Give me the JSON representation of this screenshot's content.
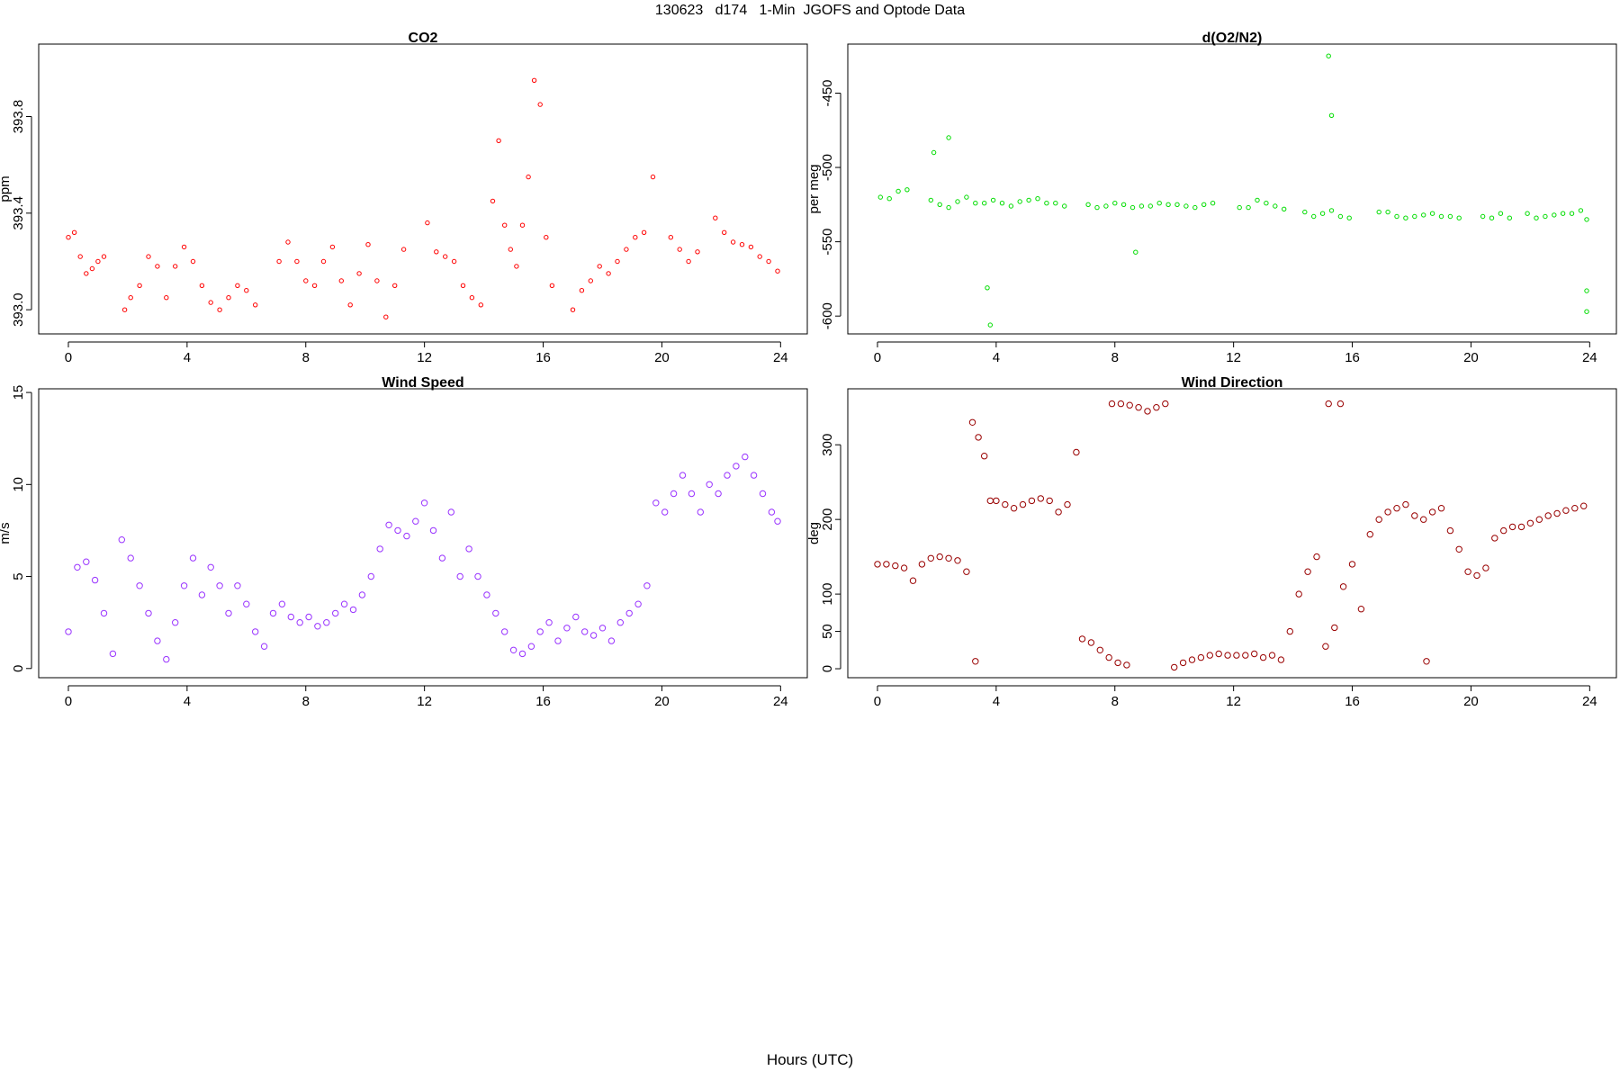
{
  "page": {
    "title": "130623   d174   1-Min  JGOFS and Optode Data",
    "xlabel": "Hours (UTC)"
  },
  "chart_data": [
    {
      "type": "scatter",
      "title": "CO2",
      "xlabel": "",
      "ylabel": "ppm",
      "xlim": [
        -1,
        24.9
      ],
      "ylim": [
        392.9,
        394.1
      ],
      "xticks": [
        0,
        4,
        8,
        12,
        16,
        20,
        24
      ],
      "yticks": [
        393.0,
        393.4,
        393.8
      ],
      "ytick_labels": [
        "393.0",
        "393.4",
        "393.8"
      ],
      "color": "#ff0000",
      "grid": false,
      "series": [
        {
          "x": [
            0.0,
            0.2,
            0.4,
            0.6,
            0.8,
            1.0,
            1.2,
            1.9,
            2.1,
            2.4,
            2.7,
            3.0,
            3.3,
            3.6,
            3.9,
            4.2,
            4.5,
            4.8,
            5.1,
            5.4,
            5.7,
            6.0,
            6.3,
            7.1,
            7.4,
            7.7,
            8.0,
            8.3,
            8.6,
            8.9,
            9.2,
            9.5,
            9.8,
            10.1,
            10.4,
            10.7,
            11.0,
            11.3,
            12.1,
            12.4,
            12.7,
            13.0,
            13.3,
            13.6,
            13.9,
            14.3,
            14.5,
            14.7,
            14.9,
            15.1,
            15.3,
            15.5,
            15.7,
            15.9,
            16.1,
            16.3,
            17.0,
            17.3,
            17.6,
            17.9,
            18.2,
            18.5,
            18.8,
            19.1,
            19.4,
            19.7,
            20.3,
            20.6,
            20.9,
            21.2,
            21.8,
            22.1,
            22.4,
            22.7,
            23.0,
            23.3,
            23.6,
            23.9
          ],
          "y": [
            393.3,
            393.32,
            393.22,
            393.15,
            393.17,
            393.2,
            393.22,
            393.0,
            393.05,
            393.1,
            393.22,
            393.18,
            393.05,
            393.18,
            393.26,
            393.2,
            393.1,
            393.03,
            393.0,
            393.05,
            393.1,
            393.08,
            393.02,
            393.2,
            393.28,
            393.2,
            393.12,
            393.1,
            393.2,
            393.26,
            393.12,
            393.02,
            393.15,
            393.27,
            393.12,
            392.97,
            393.1,
            393.25,
            393.36,
            393.24,
            393.22,
            393.2,
            393.1,
            393.05,
            393.02,
            393.45,
            393.7,
            393.35,
            393.25,
            393.18,
            393.35,
            393.55,
            393.95,
            393.85,
            393.3,
            393.1,
            393.0,
            393.08,
            393.12,
            393.18,
            393.15,
            393.2,
            393.25,
            393.3,
            393.32,
            393.55,
            393.3,
            393.25,
            393.2,
            393.24,
            393.38,
            393.32,
            393.28,
            393.27,
            393.26,
            393.22,
            393.2,
            393.16
          ]
        }
      ]
    },
    {
      "type": "scatter",
      "title": "d(O2/N2)",
      "xlabel": "",
      "ylabel": "per meg",
      "xlim": [
        -1,
        24.9
      ],
      "ylim": [
        -612,
        -417
      ],
      "xticks": [
        0,
        4,
        8,
        12,
        16,
        20,
        24
      ],
      "yticks": [
        -450,
        -500,
        -550,
        -600
      ],
      "ytick_labels": [
        "-450",
        "-500",
        "-550",
        "-600"
      ],
      "color": "#00dd00",
      "grid": false,
      "series": [
        {
          "x": [
            0.1,
            0.4,
            0.7,
            1.0,
            1.8,
            2.1,
            2.4,
            2.7,
            3.0,
            3.3,
            3.6,
            3.9,
            4.2,
            4.5,
            4.8,
            5.1,
            5.4,
            5.7,
            6.0,
            6.3,
            7.1,
            7.4,
            7.7,
            8.0,
            8.3,
            8.6,
            8.9,
            9.2,
            9.5,
            9.8,
            10.1,
            10.4,
            10.7,
            11.0,
            11.3,
            12.2,
            12.5,
            12.8,
            13.1,
            13.4,
            13.7,
            14.4,
            14.7,
            15.0,
            15.3,
            15.6,
            15.9,
            16.9,
            17.2,
            17.5,
            17.8,
            18.1,
            18.4,
            18.7,
            19.0,
            19.3,
            19.6,
            20.4,
            20.7,
            21.0,
            21.3,
            21.9,
            22.2,
            22.5,
            22.8,
            23.1,
            23.4,
            23.7,
            23.9,
            2.4,
            1.9,
            3.7,
            3.8,
            15.2,
            15.3,
            23.9,
            23.9,
            8.7
          ],
          "y": [
            -520,
            -521,
            -516,
            -515,
            -522,
            -525,
            -527,
            -523,
            -520,
            -524,
            -524,
            -522,
            -524,
            -526,
            -523,
            -522,
            -521,
            -524,
            -524,
            -526,
            -525,
            -527,
            -526,
            -524,
            -525,
            -527,
            -526,
            -526,
            -524,
            -525,
            -525,
            -526,
            -527,
            -525,
            -524,
            -527,
            -527,
            -522,
            -524,
            -526,
            -528,
            -530,
            -533,
            -531,
            -529,
            -533,
            -534,
            -530,
            -530,
            -533,
            -534,
            -533,
            -532,
            -531,
            -533,
            -533,
            -534,
            -533,
            -534,
            -531,
            -534,
            -531,
            -534,
            -533,
            -532,
            -531,
            -531,
            -529,
            -535,
            -480,
            -490,
            -581,
            -606,
            -425,
            -465,
            -583,
            -597,
            -557
          ]
        }
      ]
    },
    {
      "type": "scatter",
      "title": "Wind Speed",
      "xlabel": "",
      "ylabel": "m/s",
      "xlim": [
        -1,
        24.9
      ],
      "ylim": [
        -0.5,
        15.2
      ],
      "xticks": [
        0,
        4,
        8,
        12,
        16,
        20,
        24
      ],
      "yticks": [
        0,
        5,
        10,
        15
      ],
      "ytick_labels": [
        "0",
        "5",
        "10",
        "15"
      ],
      "color": "#9933ff",
      "grid": false,
      "series": [
        {
          "x": [
            0.0,
            0.3,
            0.6,
            0.9,
            1.2,
            1.5,
            1.8,
            2.1,
            2.4,
            2.7,
            3.0,
            3.3,
            3.6,
            3.9,
            4.2,
            4.5,
            4.8,
            5.1,
            5.4,
            5.7,
            6.0,
            6.3,
            6.6,
            6.9,
            7.2,
            7.5,
            7.8,
            8.1,
            8.4,
            8.7,
            9.0,
            9.3,
            9.6,
            9.9,
            10.2,
            10.5,
            10.8,
            11.1,
            11.4,
            11.7,
            12.0,
            12.3,
            12.6,
            12.9,
            13.2,
            13.5,
            13.8,
            14.1,
            14.4,
            14.7,
            15.0,
            15.3,
            15.6,
            15.9,
            16.2,
            16.5,
            16.8,
            17.1,
            17.4,
            17.7,
            18.0,
            18.3,
            18.6,
            18.9,
            19.2,
            19.5,
            19.8,
            20.1,
            20.4,
            20.7,
            21.0,
            21.3,
            21.6,
            21.9,
            22.2,
            22.5,
            22.8,
            23.1,
            23.4,
            23.7,
            23.9
          ],
          "y": [
            2.0,
            5.5,
            5.8,
            4.8,
            3.0,
            0.8,
            7.0,
            6.0,
            4.5,
            3.0,
            1.5,
            0.5,
            2.5,
            4.5,
            6.0,
            4.0,
            5.5,
            4.5,
            3.0,
            4.5,
            3.5,
            2.0,
            1.2,
            3.0,
            3.5,
            2.8,
            2.5,
            2.8,
            2.3,
            2.5,
            3.0,
            3.5,
            3.2,
            4.0,
            5.0,
            6.5,
            7.8,
            7.5,
            7.2,
            8.0,
            9.0,
            7.5,
            6.0,
            8.5,
            5.0,
            6.5,
            5.0,
            4.0,
            3.0,
            2.0,
            1.0,
            0.8,
            1.2,
            2.0,
            2.5,
            1.5,
            2.2,
            2.8,
            2.0,
            1.8,
            2.2,
            1.5,
            2.5,
            3.0,
            3.5,
            4.5,
            9.0,
            8.5,
            9.5,
            10.5,
            9.5,
            8.5,
            10.0,
            9.5,
            10.5,
            11.0,
            11.5,
            10.5,
            9.5,
            8.5,
            8.0
          ]
        }
      ]
    },
    {
      "type": "scatter",
      "title": "Wind Direction",
      "xlabel": "",
      "ylabel": "deg",
      "xlim": [
        -1,
        24.9
      ],
      "ylim": [
        -12,
        375
      ],
      "xticks": [
        0,
        4,
        8,
        12,
        16,
        20,
        24
      ],
      "yticks": [
        0,
        50,
        100,
        200,
        300
      ],
      "ytick_labels": [
        "0",
        "50",
        "100",
        "200",
        "300"
      ],
      "color": "#990000",
      "grid": false,
      "series": [
        {
          "x": [
            0.0,
            0.3,
            0.6,
            0.9,
            1.2,
            1.5,
            1.8,
            2.1,
            2.4,
            2.7,
            3.0,
            3.2,
            3.4,
            3.6,
            3.8,
            4.0,
            4.3,
            4.6,
            4.9,
            5.2,
            5.5,
            5.8,
            6.1,
            6.4,
            6.9,
            7.2,
            7.5,
            7.8,
            8.1,
            8.4,
            7.9,
            8.2,
            8.5,
            8.8,
            9.1,
            9.4,
            9.7,
            10.0,
            10.3,
            10.6,
            10.9,
            11.2,
            11.5,
            11.8,
            12.1,
            12.4,
            12.7,
            13.0,
            13.3,
            13.6,
            13.9,
            14.2,
            14.5,
            14.8,
            15.1,
            15.4,
            15.7,
            16.0,
            16.3,
            16.6,
            16.9,
            17.2,
            17.5,
            17.8,
            18.1,
            18.4,
            18.7,
            19.0,
            19.3,
            19.6,
            19.9,
            20.2,
            20.5,
            20.8,
            21.1,
            21.4,
            21.7,
            22.0,
            22.3,
            22.6,
            22.9,
            23.2,
            23.5,
            23.8,
            3.3,
            6.7,
            15.2,
            15.6,
            18.5
          ],
          "y": [
            140,
            140,
            138,
            135,
            118,
            140,
            148,
            150,
            148,
            145,
            130,
            330,
            310,
            285,
            225,
            225,
            220,
            215,
            220,
            225,
            228,
            225,
            210,
            220,
            40,
            35,
            25,
            15,
            8,
            5,
            355,
            355,
            353,
            350,
            345,
            350,
            355,
            2,
            8,
            12,
            15,
            18,
            20,
            18,
            18,
            18,
            20,
            15,
            18,
            12,
            50,
            100,
            130,
            150,
            30,
            55,
            110,
            140,
            80,
            180,
            200,
            210,
            215,
            220,
            205,
            200,
            210,
            215,
            185,
            160,
            130,
            125,
            135,
            175,
            185,
            190,
            190,
            195,
            200,
            205,
            208,
            212,
            215,
            218,
            10,
            290,
            355,
            355,
            10
          ]
        }
      ]
    }
  ]
}
